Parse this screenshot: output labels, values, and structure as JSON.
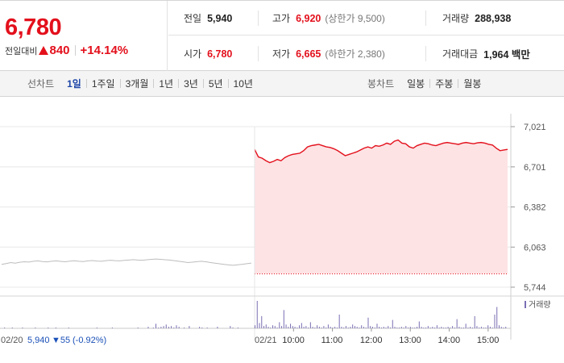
{
  "summary": {
    "price": "6,780",
    "change_label": "전일대비",
    "change_amount": "840",
    "change_percent": "+14.14%",
    "stats": {
      "prev_close": {
        "label": "전일",
        "value": "5,940"
      },
      "high": {
        "label": "고가",
        "value": "6,920",
        "limit": "(상한가 9,500)"
      },
      "volume": {
        "label": "거래량",
        "value": "288,938"
      },
      "open": {
        "label": "시가",
        "value": "6,780"
      },
      "low": {
        "label": "저가",
        "value": "6,665",
        "limit": "(하한가 2,380)"
      },
      "amount": {
        "label": "거래대금",
        "value": "1,964 백만"
      }
    }
  },
  "periods": {
    "line_label": "선차트",
    "line_items": [
      "1일",
      "1주일",
      "3개월",
      "1년",
      "3년",
      "5년",
      "10년"
    ],
    "line_active": "1일",
    "candle_label": "봉차트",
    "candle_items": [
      "일봉",
      "주봉",
      "월봉"
    ]
  },
  "colors": {
    "up": "#e3101c",
    "down": "#1a50b8",
    "area_fill": "#fde3e4",
    "prev_line": "#bdbdbd",
    "volume": "#7b6eb3",
    "grid": "#e8e8e8"
  },
  "chart_data": {
    "type": "line",
    "title": "",
    "y_ticks": [
      "7,021",
      "6,701",
      "6,382",
      "6,063",
      "5,744"
    ],
    "ylim": [
      5744,
      7021
    ],
    "prev_day": {
      "date": "02/20",
      "close": "5,940",
      "change": "▼55",
      "change_percent": "(-0.92%)",
      "values": [
        5925,
        5932,
        5940,
        5935,
        5942,
        5946,
        5944,
        5950,
        5953,
        5948,
        5945,
        5950,
        5953,
        5949,
        5946,
        5951,
        5954,
        5950,
        5948,
        5953,
        5956,
        5952,
        5950,
        5955,
        5958,
        5955,
        5953,
        5957,
        5960,
        5963,
        5960,
        5958,
        5962,
        5965,
        5968,
        5965,
        5962,
        5960,
        5955,
        5950,
        5945,
        5940,
        5943,
        5947,
        5950,
        5946,
        5940,
        5935,
        5930,
        5925,
        5921,
        5918,
        5922,
        5926,
        5931,
        5936
      ]
    },
    "today": {
      "date": "02/21",
      "x_labels": [
        "10:00",
        "11:00",
        "12:00",
        "13:00",
        "14:00",
        "15:00"
      ],
      "values": [
        6840,
        6780,
        6770,
        6750,
        6735,
        6745,
        6760,
        6750,
        6775,
        6790,
        6800,
        6805,
        6810,
        6830,
        6860,
        6870,
        6875,
        6880,
        6870,
        6860,
        6855,
        6845,
        6830,
        6810,
        6790,
        6800,
        6810,
        6820,
        6835,
        6850,
        6860,
        6850,
        6870,
        6865,
        6875,
        6890,
        6880,
        6905,
        6915,
        6890,
        6885,
        6860,
        6850,
        6870,
        6880,
        6890,
        6885,
        6875,
        6870,
        6880,
        6890,
        6895,
        6890,
        6885,
        6880,
        6890,
        6895,
        6890,
        6885,
        6892,
        6895,
        6890,
        6880,
        6875,
        6850,
        6830,
        6835,
        6840
      ]
    },
    "volume_label": "거래량",
    "volume": {
      "prev": [
        0,
        1,
        0,
        0,
        1,
        0,
        0,
        0,
        1,
        0,
        0,
        0,
        0,
        1,
        0,
        0,
        0,
        0,
        1,
        0,
        0,
        1,
        0,
        0,
        0,
        0,
        1,
        0,
        0,
        0,
        0,
        0,
        0,
        0,
        0,
        0,
        0,
        1,
        0,
        0,
        0,
        0,
        0,
        1,
        0,
        0,
        0,
        0,
        0,
        0,
        0,
        0,
        0,
        1,
        0,
        0,
        0,
        2,
        0,
        1,
        6,
        1,
        2,
        3,
        5,
        2,
        3,
        1,
        4,
        2,
        0,
        1,
        0,
        3,
        0,
        0,
        0,
        2,
        1,
        0,
        1,
        0,
        0,
        0,
        2,
        0,
        0,
        0,
        0,
        3,
        1,
        0,
        1,
        0,
        0,
        0,
        0,
        0
      ],
      "today": [
        4,
        36,
        7,
        16,
        3,
        5,
        2,
        1,
        4,
        3,
        1,
        8,
        3,
        24,
        5,
        2,
        6,
        3,
        2,
        1,
        4,
        7,
        2,
        3,
        1,
        8,
        2,
        1,
        4,
        2,
        1,
        3,
        1,
        5,
        2,
        1,
        2,
        1,
        18,
        2,
        1,
        3,
        1,
        2,
        5,
        3,
        2,
        1,
        4,
        2,
        1,
        14,
        3,
        2,
        1,
        6,
        2,
        1,
        2,
        1,
        3,
        1,
        11,
        2,
        1,
        1,
        2,
        1,
        3,
        1,
        2,
        1,
        1,
        2,
        9,
        2,
        1,
        1,
        3,
        1,
        2,
        1,
        4,
        1,
        2,
        1,
        1,
        2,
        1,
        3,
        1,
        12,
        2,
        1,
        1,
        6,
        1,
        2,
        1,
        16,
        3,
        1,
        2,
        1,
        1,
        4,
        2,
        1,
        18,
        28,
        4,
        2,
        1,
        2
      ]
    }
  }
}
